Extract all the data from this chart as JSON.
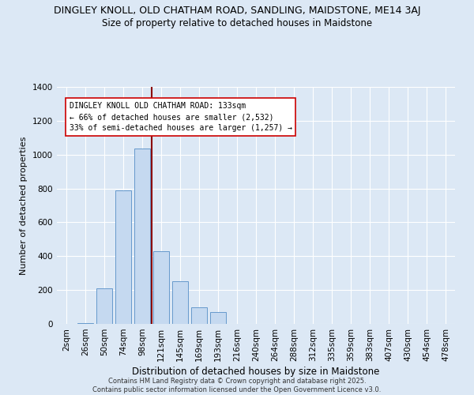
{
  "title1": "DINGLEY KNOLL, OLD CHATHAM ROAD, SANDLING, MAIDSTONE, ME14 3AJ",
  "title2": "Size of property relative to detached houses in Maidstone",
  "xlabel": "Distribution of detached houses by size in Maidstone",
  "ylabel": "Number of detached properties",
  "categories": [
    "2sqm",
    "26sqm",
    "50sqm",
    "74sqm",
    "98sqm",
    "121sqm",
    "145sqm",
    "169sqm",
    "193sqm",
    "216sqm",
    "240sqm",
    "264sqm",
    "288sqm",
    "312sqm",
    "335sqm",
    "359sqm",
    "383sqm",
    "407sqm",
    "430sqm",
    "454sqm",
    "478sqm"
  ],
  "values": [
    0,
    5,
    210,
    790,
    1035,
    430,
    250,
    100,
    68,
    0,
    0,
    0,
    0,
    0,
    0,
    0,
    0,
    0,
    0,
    0,
    0
  ],
  "bar_color": "#c5d9f0",
  "bar_edge_color": "#6699cc",
  "highlight_line_color": "#8b0000",
  "annotation_text": "DINGLEY KNOLL OLD CHATHAM ROAD: 133sqm\n← 66% of detached houses are smaller (2,532)\n33% of semi-detached houses are larger (1,257) →",
  "annotation_box_color": "#ffffff",
  "annotation_box_edge": "#cc0000",
  "ylim": [
    0,
    1400
  ],
  "yticks": [
    0,
    200,
    400,
    600,
    800,
    1000,
    1200,
    1400
  ],
  "background_color": "#dce8f5",
  "grid_color": "#ffffff",
  "footer_text": "Contains HM Land Registry data © Crown copyright and database right 2025.\nContains public sector information licensed under the Open Government Licence v3.0.",
  "title1_fontsize": 9,
  "title2_fontsize": 8.5,
  "xlabel_fontsize": 8.5,
  "ylabel_fontsize": 8,
  "tick_fontsize": 7.5,
  "annot_fontsize": 7
}
